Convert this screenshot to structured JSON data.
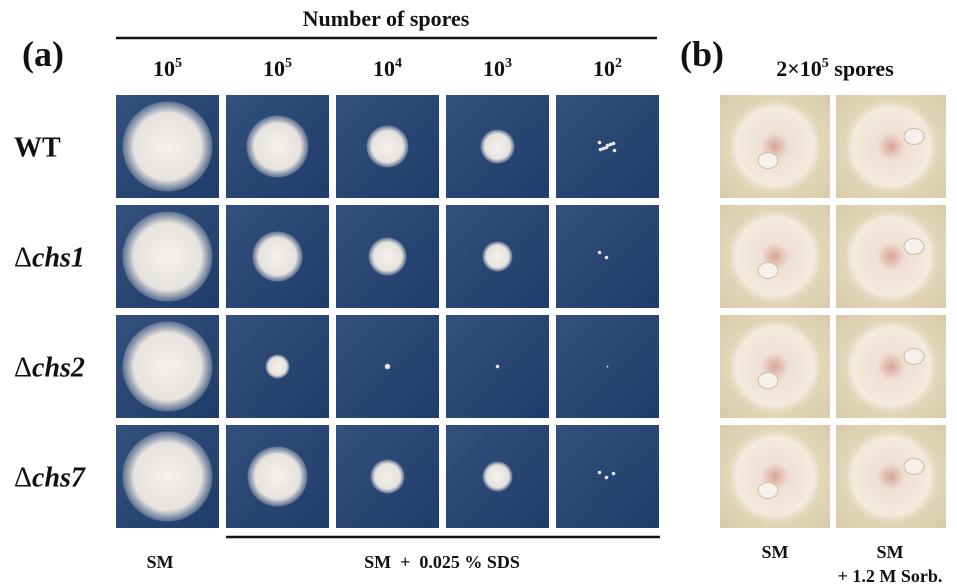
{
  "panel_a": {
    "label": "(a)",
    "header": "Number of spores",
    "columns": [
      {
        "base": "10",
        "exp": "5"
      },
      {
        "base": "10",
        "exp": "5"
      },
      {
        "base": "10",
        "exp": "4"
      },
      {
        "base": "10",
        "exp": "3"
      },
      {
        "base": "10",
        "exp": "2"
      }
    ],
    "rows": [
      {
        "name": "WT"
      },
      {
        "symbol": "Δ",
        "name": "chs1"
      },
      {
        "symbol": "Δ",
        "name": "chs2"
      },
      {
        "symbol": "Δ",
        "name": "chs7"
      }
    ],
    "footer_left": "SM",
    "footer_right": "SM  +  0.025 % SDS"
  },
  "panel_b": {
    "label": "(b)",
    "header": {
      "pre": "2×10",
      "exp": "5",
      "post": " spores"
    },
    "footer_left": "SM",
    "footer_right": [
      "SM",
      "+ 1.2 M Sorb."
    ]
  }
}
